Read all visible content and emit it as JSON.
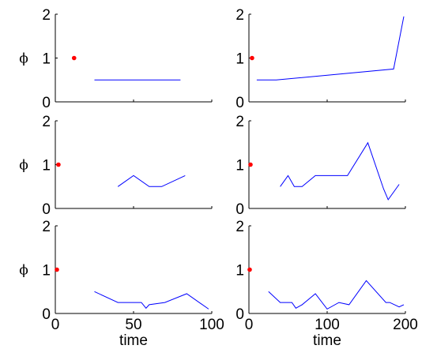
{
  "chart_data": {
    "type": "line",
    "layout": "3x2",
    "colors": {
      "series": "#0000ff",
      "marker": "#ff0000",
      "axes": "#000000"
    },
    "panels": [
      {
        "id": "r1c1",
        "ylabel": "ϕ",
        "xlabel": "",
        "xlim": [
          0,
          100
        ],
        "ylim": [
          0,
          2
        ],
        "yticks": [
          "0",
          "1",
          "2"
        ],
        "xticks": [],
        "marker": {
          "x": 12,
          "y": 1.0
        },
        "series": [
          {
            "x": [
              25,
              80
            ],
            "y": [
              0.5,
              0.5
            ]
          }
        ]
      },
      {
        "id": "r1c2",
        "ylabel": "",
        "xlabel": "",
        "xlim": [
          0,
          200
        ],
        "ylim": [
          0,
          2
        ],
        "yticks": [
          "0",
          "1",
          "2"
        ],
        "xticks": [],
        "marker": {
          "x": 4,
          "y": 1.0
        },
        "series": [
          {
            "x": [
              10,
              35,
              185,
              198
            ],
            "y": [
              0.5,
              0.5,
              0.75,
              1.95
            ]
          }
        ]
      },
      {
        "id": "r2c1",
        "ylabel": "ϕ",
        "xlabel": "",
        "xlim": [
          0,
          100
        ],
        "ylim": [
          0,
          2
        ],
        "yticks": [
          "0",
          "1",
          "2"
        ],
        "xticks": [],
        "marker": {
          "x": 2,
          "y": 1.0
        },
        "series": [
          {
            "x": [
              40,
              50,
              60,
              68,
              83
            ],
            "y": [
              0.5,
              0.75,
              0.5,
              0.5,
              0.75
            ]
          }
        ]
      },
      {
        "id": "r2c2",
        "ylabel": "",
        "xlabel": "",
        "xlim": [
          0,
          200
        ],
        "ylim": [
          0,
          2
        ],
        "yticks": [
          "0",
          "1",
          "2"
        ],
        "xticks": [],
        "marker": {
          "x": 2,
          "y": 1.0
        },
        "series": [
          {
            "x": [
              40,
              50,
              58,
              68,
              85,
              126,
              152,
              172,
              178,
              192
            ],
            "y": [
              0.5,
              0.75,
              0.5,
              0.5,
              0.75,
              0.75,
              1.5,
              0.45,
              0.2,
              0.55
            ]
          }
        ]
      },
      {
        "id": "r3c1",
        "ylabel": "ϕ",
        "xlabel": "time",
        "xlim": [
          0,
          100
        ],
        "ylim": [
          0,
          2
        ],
        "yticks": [
          "0",
          "1",
          "2"
        ],
        "xticks": [
          "0",
          "50",
          "100"
        ],
        "marker": {
          "x": 1,
          "y": 1.0
        },
        "series": [
          {
            "x": [
              25,
              40,
              55,
              58,
              60,
              70,
              84,
              98
            ],
            "y": [
              0.5,
              0.25,
              0.25,
              0.12,
              0.2,
              0.25,
              0.45,
              0.1
            ]
          }
        ]
      },
      {
        "id": "r3c2",
        "ylabel": "",
        "xlabel": "time",
        "xlim": [
          0,
          200
        ],
        "ylim": [
          0,
          2
        ],
        "yticks": [
          "0",
          "1",
          "2"
        ],
        "xticks": [
          "0",
          "100",
          "200"
        ],
        "marker": {
          "x": 1,
          "y": 1.0
        },
        "series": [
          {
            "x": [
              25,
              40,
              55,
              60,
              68,
              85,
              100,
              115,
              128,
              150,
              175,
              180,
              192,
              198
            ],
            "y": [
              0.5,
              0.25,
              0.25,
              0.12,
              0.2,
              0.45,
              0.1,
              0.25,
              0.2,
              0.75,
              0.25,
              0.25,
              0.15,
              0.2
            ]
          }
        ]
      }
    ]
  }
}
